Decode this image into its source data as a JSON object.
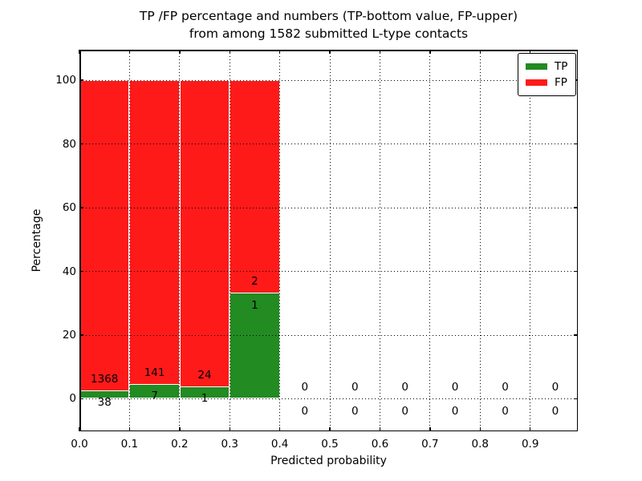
{
  "figure": {
    "title_line1": "TP /FP percentage and numbers (TP-bottom value, FP-upper)",
    "title_line2": "from among 1582 submitted L-type contacts",
    "xlabel": "Predicted probability",
    "ylabel": "Percentage"
  },
  "legend": {
    "items": [
      {
        "label": "TP",
        "color": "#228B22"
      },
      {
        "label": "FP",
        "color": "#FF1A1A"
      }
    ]
  },
  "chart_data": {
    "type": "bar",
    "stacked": true,
    "title": "TP /FP percentage and numbers (TP-bottom value, FP-upper) from among 1582 submitted L-type contacts",
    "xlabel": "Predicted probability",
    "ylabel": "Percentage",
    "total_submitted": 1582,
    "xlim": [
      0,
      0.995
    ],
    "ylim": [
      -10.2,
      109.6
    ],
    "grid": true,
    "grid_style": "dotted",
    "legend_position": "upper right",
    "colors": {
      "tp": "#228B22",
      "fp": "#FF1A1A",
      "bar_edge": "#FFFFFF"
    },
    "bin_width": 0.1,
    "xticks": [
      {
        "value": 0.0,
        "label": "0.0"
      },
      {
        "value": 0.1,
        "label": "0.1"
      },
      {
        "value": 0.2,
        "label": "0.2"
      },
      {
        "value": 0.3,
        "label": "0.3"
      },
      {
        "value": 0.4,
        "label": "0.4"
      },
      {
        "value": 0.5,
        "label": "0.5"
      },
      {
        "value": 0.6,
        "label": "0.6"
      },
      {
        "value": 0.7,
        "label": "0.7"
      },
      {
        "value": 0.8,
        "label": "0.8"
      },
      {
        "value": 0.9,
        "label": "0.9"
      }
    ],
    "yticks": [
      {
        "value": 0,
        "label": "0"
      },
      {
        "value": 20,
        "label": "20"
      },
      {
        "value": 40,
        "label": "40"
      },
      {
        "value": 60,
        "label": "60"
      },
      {
        "value": 80,
        "label": "80"
      },
      {
        "value": 100,
        "label": "100"
      }
    ],
    "bins": [
      {
        "x0": 0.0,
        "x1": 0.1,
        "tp_count": 38,
        "fp_count": 1368,
        "tp_pct": 2.7,
        "fp_pct": 97.3
      },
      {
        "x0": 0.1,
        "x1": 0.2,
        "tp_count": 7,
        "fp_count": 141,
        "tp_pct": 4.73,
        "fp_pct": 95.27
      },
      {
        "x0": 0.2,
        "x1": 0.3,
        "tp_count": 1,
        "fp_count": 24,
        "tp_pct": 4.0,
        "fp_pct": 96.0
      },
      {
        "x0": 0.3,
        "x1": 0.4,
        "tp_count": 1,
        "fp_count": 2,
        "tp_pct": 33.33,
        "fp_pct": 66.67
      },
      {
        "x0": 0.4,
        "x1": 0.5,
        "tp_count": 0,
        "fp_count": 0,
        "tp_pct": 0,
        "fp_pct": 0
      },
      {
        "x0": 0.5,
        "x1": 0.6,
        "tp_count": 0,
        "fp_count": 0,
        "tp_pct": 0,
        "fp_pct": 0
      },
      {
        "x0": 0.6,
        "x1": 0.7,
        "tp_count": 0,
        "fp_count": 0,
        "tp_pct": 0,
        "fp_pct": 0
      },
      {
        "x0": 0.7,
        "x1": 0.8,
        "tp_count": 0,
        "fp_count": 0,
        "tp_pct": 0,
        "fp_pct": 0
      },
      {
        "x0": 0.8,
        "x1": 0.9,
        "tp_count": 0,
        "fp_count": 0,
        "tp_pct": 0,
        "fp_pct": 0
      },
      {
        "x0": 0.9,
        "x1": 1.0,
        "tp_count": 0,
        "fp_count": 0,
        "tp_pct": 0,
        "fp_pct": 0
      }
    ]
  }
}
